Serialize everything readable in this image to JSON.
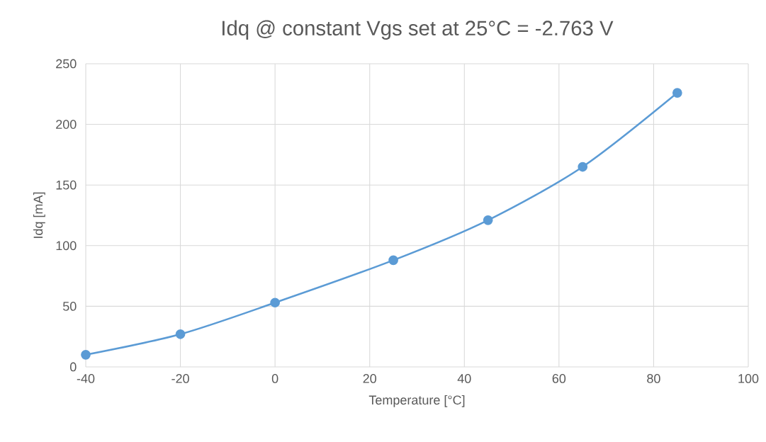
{
  "chart_data": {
    "type": "line",
    "title": "Idq @ constant Vgs set at 25°C = -2.763 V",
    "xlabel": "Temperature [°C]",
    "ylabel": "Idq [mA]",
    "x": [
      -40,
      -20,
      0,
      25,
      45,
      65,
      85
    ],
    "series": [
      {
        "color": "#5b9bd5",
        "values": [
          10,
          27,
          53,
          88,
          121,
          165,
          226
        ]
      }
    ],
    "xlim": [
      -40,
      100
    ],
    "xticks": [
      -40,
      -20,
      0,
      20,
      40,
      60,
      80,
      100
    ],
    "ylim": [
      0,
      250
    ],
    "yticks": [
      0,
      50,
      100,
      150,
      200,
      250
    ],
    "grid": true,
    "marker": "circle",
    "line_style": "solid"
  }
}
